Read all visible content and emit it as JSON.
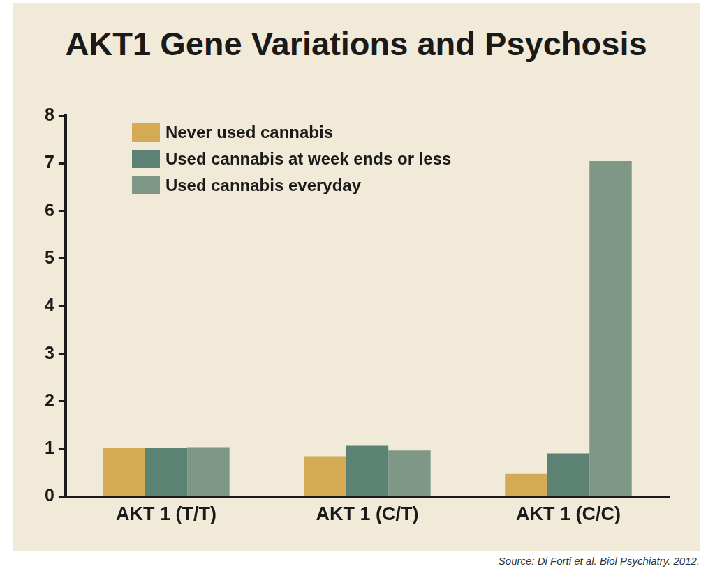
{
  "chart_data": {
    "type": "bar",
    "title": "AKT1 Gene Variations and Psychosis",
    "source": "Source: Di Forti et al. Biol Psychiatry. 2012.",
    "categories": [
      "AKT 1 (T/T)",
      "AKT 1 (C/T)",
      "AKT 1 (C/C)"
    ],
    "series": [
      {
        "name": "Never used cannabis",
        "color": "#d4aa55",
        "values": [
          1.02,
          0.85,
          0.48
        ]
      },
      {
        "name": "Used cannabis at week ends or less",
        "color": "#5b8272",
        "values": [
          1.02,
          1.07,
          0.91
        ]
      },
      {
        "name": "Used cannabis everyday",
        "color": "#7e9787",
        "values": [
          1.04,
          0.97,
          7.05
        ]
      }
    ],
    "ylim": [
      0,
      8
    ],
    "yticks": [
      0,
      1,
      2,
      3,
      4,
      5,
      6,
      7,
      8
    ],
    "grid": false,
    "legend": "upper left"
  }
}
